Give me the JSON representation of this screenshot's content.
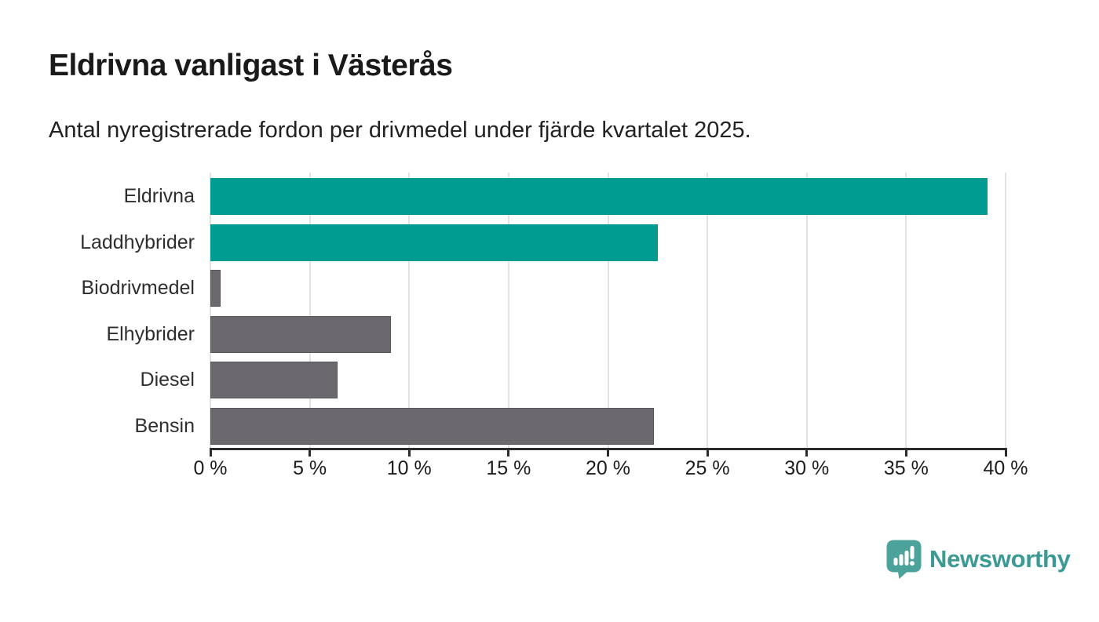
{
  "title": "Eldrivna vanligast i Västerås",
  "subtitle": "Antal nyregistrerade fordon per drivmedel under fjärde kvartalet 2025.",
  "chart_data": {
    "type": "bar",
    "orientation": "horizontal",
    "title": "Eldrivna vanligast i Västerås",
    "subtitle": "Antal nyregistrerade fordon per drivmedel under fjärde kvartalet 2025.",
    "categories": [
      "Eldrivna",
      "Laddhybrider",
      "Biodrivmedel",
      "Elhybrider",
      "Diesel",
      "Bensin"
    ],
    "values": [
      39.1,
      22.5,
      0.5,
      9.1,
      6.4,
      22.3
    ],
    "unit": "%",
    "xlabel": "",
    "ylabel": "",
    "xlim": [
      0,
      40
    ],
    "x_tick_values": [
      0,
      5,
      10,
      15,
      20,
      25,
      30,
      35,
      40
    ],
    "x_tick_labels": [
      "0 %",
      "5 %",
      "10 %",
      "15 %",
      "20 %",
      "25 %",
      "30 %",
      "35 %",
      "40 %"
    ],
    "grid": "vertical-only",
    "legend": "none",
    "bar_colors": [
      "#009c92",
      "#009c92",
      "#6b696d",
      "#6b696d",
      "#6b696d",
      "#6b696d"
    ],
    "bar_border_colors": [
      "#009c92",
      "#009c92",
      "#57545a",
      "#57545a",
      "#57545a",
      "#57545a"
    ]
  },
  "colors": {
    "background": "#ffffff",
    "title": "#1a1a1a",
    "subtitle": "#222222",
    "axis": "#2c2c2c",
    "tick_label": "#1d1d1d",
    "category_label": "#2e2e2e",
    "gridline": "#e3e3e3",
    "highlight_bar": "#009c92",
    "default_bar": "#6b696d"
  },
  "branding": {
    "logo_text": "Newsworthy",
    "logo_icon": "speech-bubble-bar-chart-icon",
    "icon_color": "#4ba39c",
    "text_color": "#3b9a93"
  }
}
